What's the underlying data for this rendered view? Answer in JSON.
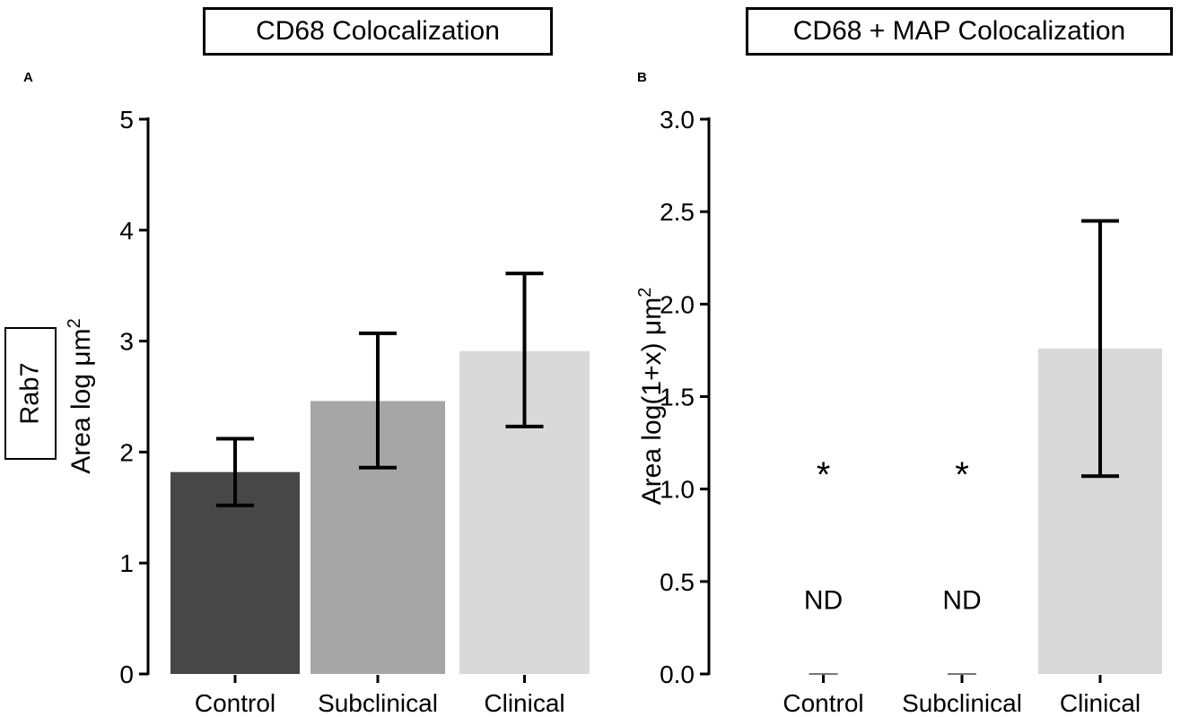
{
  "panels": {
    "a": {
      "letter": "A",
      "title": "CD68 Colocalization"
    },
    "b": {
      "letter": "B",
      "title": "CD68 + MAP Colocalization"
    }
  },
  "row_label": "Rab7",
  "chart_data": [
    {
      "type": "bar",
      "panel": "A",
      "title": "CD68 Colocalization",
      "xlabel": "",
      "ylabel": "Area log μm",
      "ylabel_superscript": "2",
      "ylim": [
        0,
        5
      ],
      "yticks": [
        0,
        1,
        2,
        3,
        4,
        5
      ],
      "ytick_labels": [
        "0",
        "1",
        "2",
        "3",
        "4",
        "5"
      ],
      "categories": [
        "Control",
        "Subclinical",
        "Clinical"
      ],
      "values": [
        1.82,
        2.46,
        2.91
      ],
      "error_low": [
        1.52,
        1.86,
        2.23
      ],
      "error_high": [
        2.12,
        3.07,
        3.61
      ],
      "bar_colors": [
        "#474747",
        "#a6a6a6",
        "#d9d9d9"
      ],
      "markers": [
        "",
        "",
        ""
      ],
      "notes": [
        "",
        "",
        ""
      ]
    },
    {
      "type": "bar",
      "panel": "B",
      "title": "CD68 + MAP Colocalization",
      "xlabel": "",
      "ylabel": "Area log(1+x) μm",
      "ylabel_superscript": "2",
      "ylim": [
        0,
        3.0
      ],
      "yticks": [
        0,
        0.5,
        1.0,
        1.5,
        2.0,
        2.5,
        3.0
      ],
      "ytick_labels": [
        "0.0",
        "0.5",
        "1.0",
        "1.5",
        "2.0",
        "2.5",
        "3.0"
      ],
      "categories": [
        "Control",
        "Subclinical",
        "Clinical"
      ],
      "values": [
        0,
        0,
        1.76
      ],
      "error_low": [
        null,
        null,
        1.07
      ],
      "error_high": [
        null,
        null,
        2.45
      ],
      "bar_colors": [
        "#474747",
        "#a6a6a6",
        "#d9d9d9"
      ],
      "markers": [
        "*",
        "*",
        ""
      ],
      "marker_y": 1.12,
      "notes": [
        "ND",
        "ND",
        ""
      ],
      "note_y": 0.42
    }
  ]
}
